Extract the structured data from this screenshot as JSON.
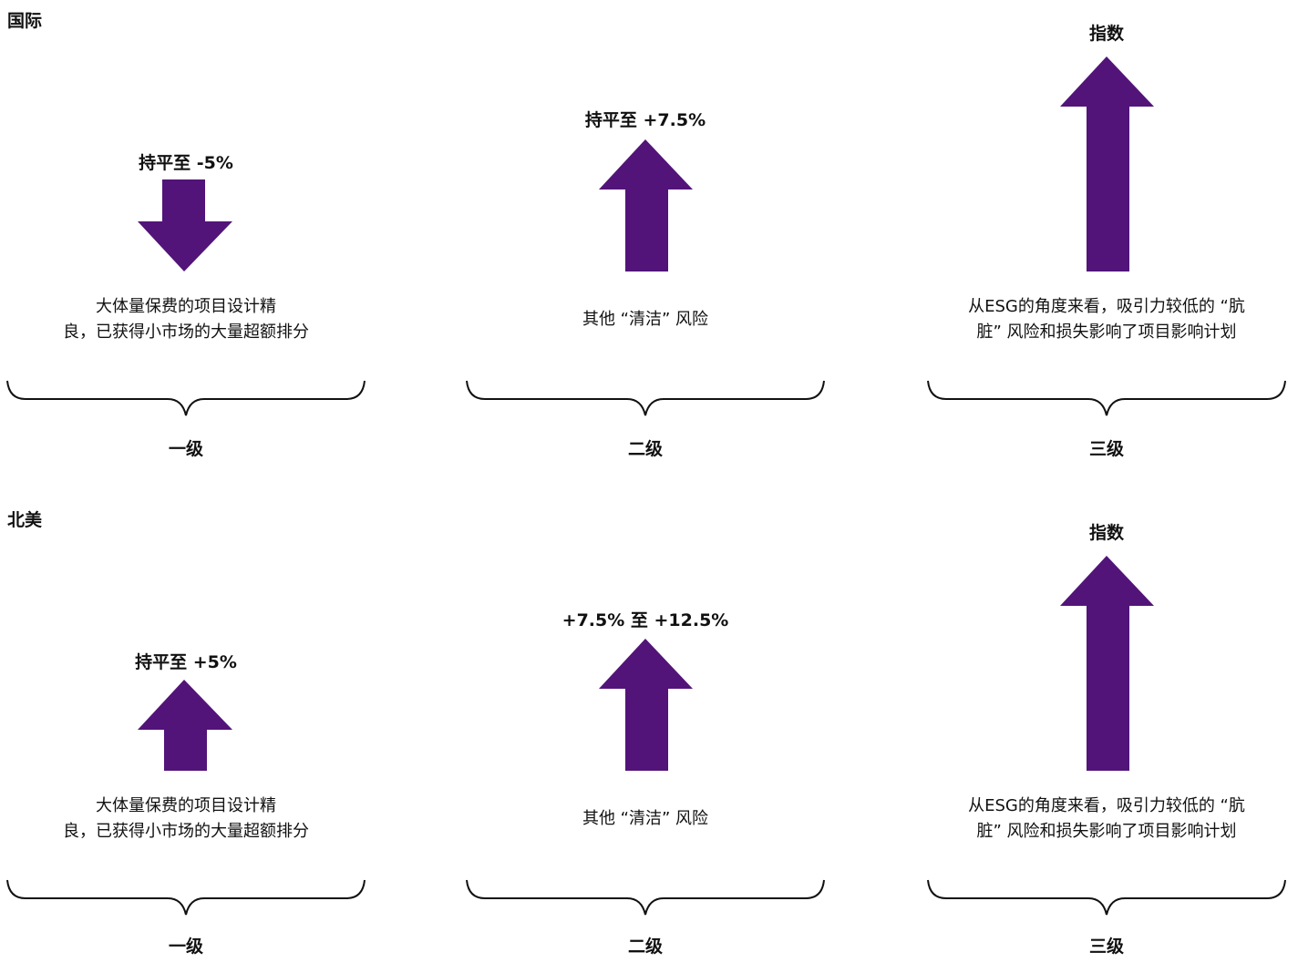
{
  "colors": {
    "arrow": "#521479",
    "text": "#111111"
  },
  "sections": [
    {
      "title": "国际",
      "columns": [
        {
          "label": "持平至 -5%",
          "direction": "down",
          "desc": [
            "大体量保费的项目设计精",
            "良，已获得小市场的大量超额排分"
          ],
          "level": "一级"
        },
        {
          "label": "持平至 +7.5%",
          "direction": "up",
          "desc": [
            "其他 “清洁” 风险"
          ],
          "level": "二级"
        },
        {
          "label": "指数",
          "direction": "up",
          "desc": [
            "从ESG的角度来看，吸引力较低的 “肮",
            "脏” 风险和损失影响了项目影响计划"
          ],
          "level": "三级"
        }
      ]
    },
    {
      "title": "北美",
      "columns": [
        {
          "label": "持平至 +5%",
          "direction": "up",
          "desc": [
            "大体量保费的项目设计精",
            "良，已获得小市场的大量超额排分"
          ],
          "level": "一级"
        },
        {
          "label": "+7.5% 至 +12.5%",
          "direction": "up",
          "desc": [
            "其他 “清洁” 风险"
          ],
          "level": "二级"
        },
        {
          "label": "指数",
          "direction": "up",
          "desc": [
            "从ESG的角度来看，吸引力较低的 “肮",
            "脏” 风险和损失影响了项目影响计划"
          ],
          "level": "三级"
        }
      ]
    }
  ]
}
